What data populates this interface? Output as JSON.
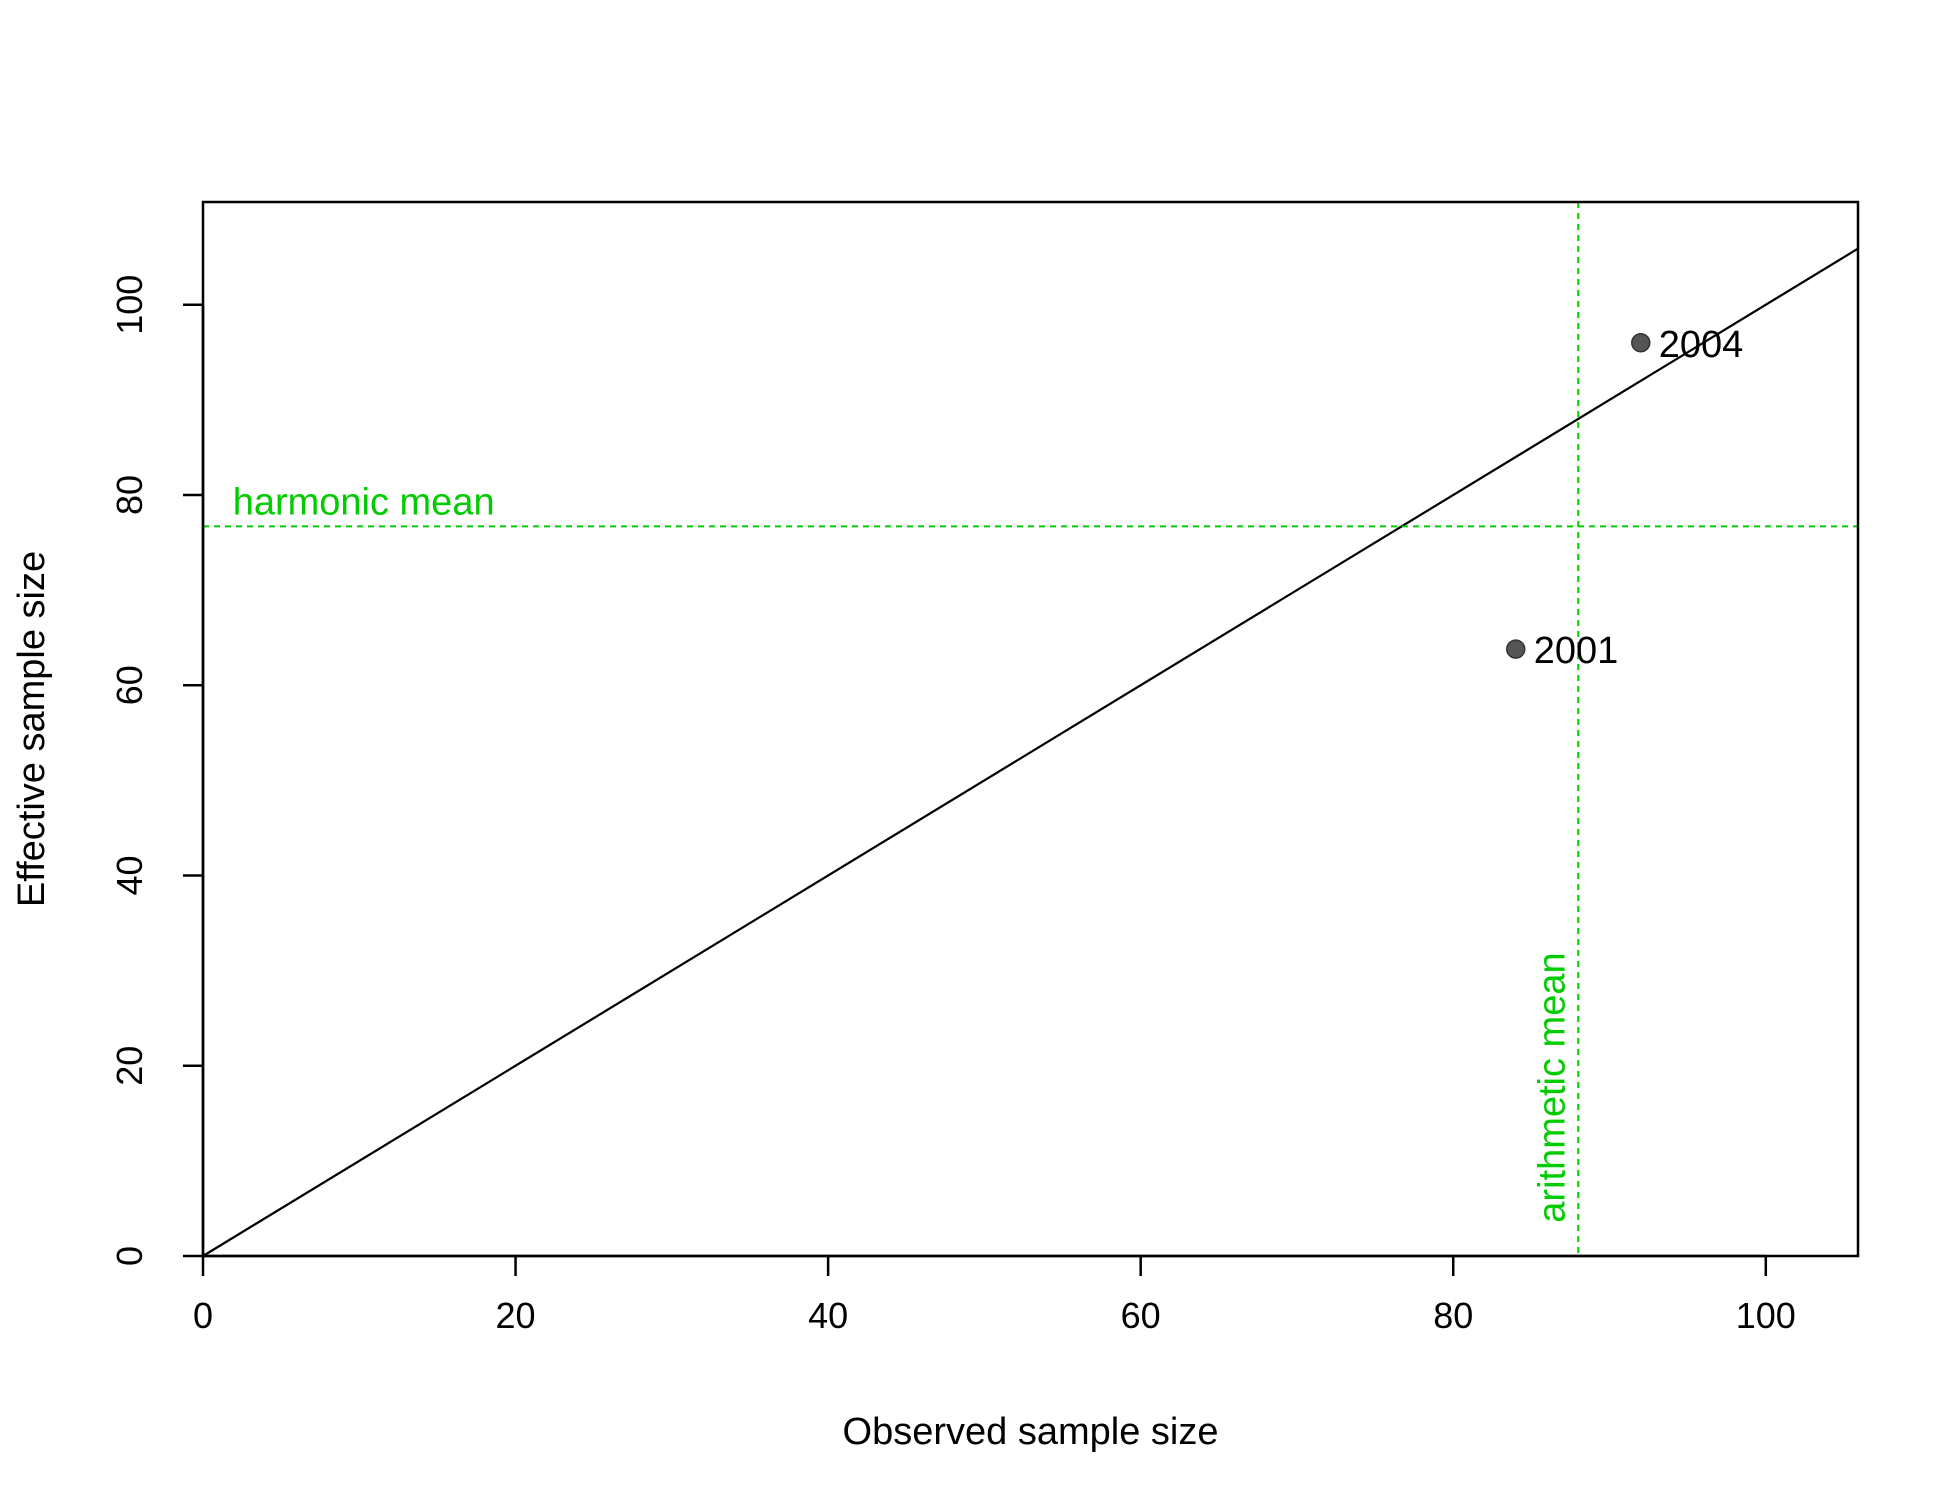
{
  "chart_data": {
    "type": "scatter",
    "title": "",
    "xlabel": "Observed sample size",
    "ylabel": "Effective sample size",
    "xlim": [
      0,
      105.9
    ],
    "ylim": [
      0,
      110.8
    ],
    "xticks": [
      "0",
      "20",
      "40",
      "60",
      "80",
      "100"
    ],
    "yticks": [
      "0",
      "20",
      "40",
      "60",
      "80",
      "100"
    ],
    "grid": false,
    "points": [
      {
        "x": 84,
        "y": 63.8,
        "label": "2001"
      },
      {
        "x": 92,
        "y": 96,
        "label": "2004"
      }
    ],
    "identity_line": {
      "x1": 0,
      "y1": 0,
      "x2": 105.9,
      "y2": 105.9
    },
    "harmonic_mean": {
      "value": 76.7,
      "label": "harmonic mean"
    },
    "arithmetic_mean": {
      "value": 88,
      "label": "arithmetic mean"
    },
    "colors": {
      "axes": "#000000",
      "points": "#555555",
      "reference_lines": "#00cc00"
    }
  }
}
